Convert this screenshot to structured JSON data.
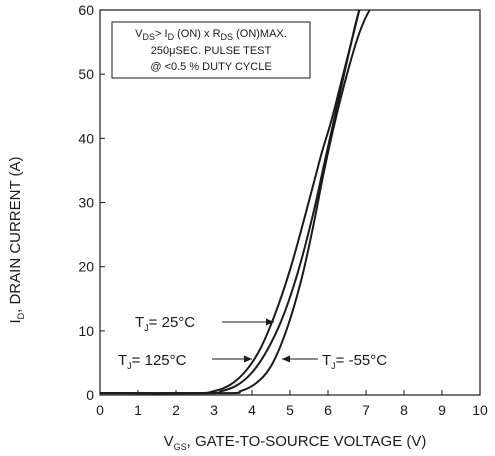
{
  "chart_data": {
    "type": "line",
    "x_axis": {
      "label_main": "V",
      "label_sub": "GS",
      "label_rest": ", GATE-TO-SOURCE VOLTAGE (V)",
      "ticks": [
        "0",
        "1",
        "2",
        "3",
        "4",
        "5",
        "6",
        "7",
        "8",
        "9",
        "10"
      ],
      "range": [
        0,
        10
      ]
    },
    "y_axis": {
      "label_main": "I",
      "label_sub": "D",
      "label_rest": ", DRAIN CURRENT (A)",
      "ticks": [
        "0",
        "10",
        "20",
        "30",
        "40",
        "50",
        "60"
      ],
      "range": [
        0,
        60
      ]
    },
    "grid": false,
    "conditions": {
      "line1": {
        "v": "V",
        "v_sub": "DS",
        "gt": "> I",
        "i_sub": "D",
        "on": " (ON) x  R",
        "r_sub": "DS",
        "max": " (ON)MAX."
      },
      "line2": "250μSEC. PULSE TEST",
      "line3": "@ <0.5 % DUTY CYCLE"
    },
    "series": [
      {
        "name": "T_J = 25°C",
        "label_main": "T",
        "label_sub": "J",
        "label_rest": "= 25°C",
        "x": [
          0,
          2.8,
          3.2,
          3.6,
          4.0,
          4.4,
          4.8,
          5.2,
          5.6,
          5.9,
          6.2,
          6.5,
          6.8,
          7.0
        ],
        "y": [
          0.3,
          0.3,
          0.6,
          1.5,
          3.5,
          7.0,
          12.0,
          19.0,
          28.0,
          36.0,
          44.0,
          52.0,
          59.5,
          62.0
        ]
      },
      {
        "name": "T_J = 125°C",
        "label_main": "T",
        "label_sub": "J",
        "label_rest": "= 125°C",
        "x": [
          0,
          2.5,
          3.0,
          3.4,
          3.8,
          4.2,
          4.6,
          5.0,
          5.4,
          5.8,
          6.1,
          6.4,
          6.7,
          6.9
        ],
        "y": [
          0.3,
          0.3,
          0.6,
          1.5,
          3.5,
          7.0,
          12.5,
          19.5,
          28.0,
          37.0,
          43.0,
          50.0,
          57.0,
          62.0
        ]
      },
      {
        "name": "T_J = -55°C",
        "label_main": "T",
        "label_sub": "J",
        "label_rest": "= -55°C",
        "x": [
          0,
          3.3,
          3.7,
          4.1,
          4.5,
          4.9,
          5.3,
          5.6,
          5.9,
          6.2,
          6.5,
          6.8,
          7.1,
          7.3
        ],
        "y": [
          0.3,
          0.3,
          0.6,
          1.8,
          4.5,
          10.0,
          18.0,
          26.0,
          35.0,
          43.0,
          50.0,
          56.0,
          60.0,
          60.5
        ]
      }
    ]
  }
}
